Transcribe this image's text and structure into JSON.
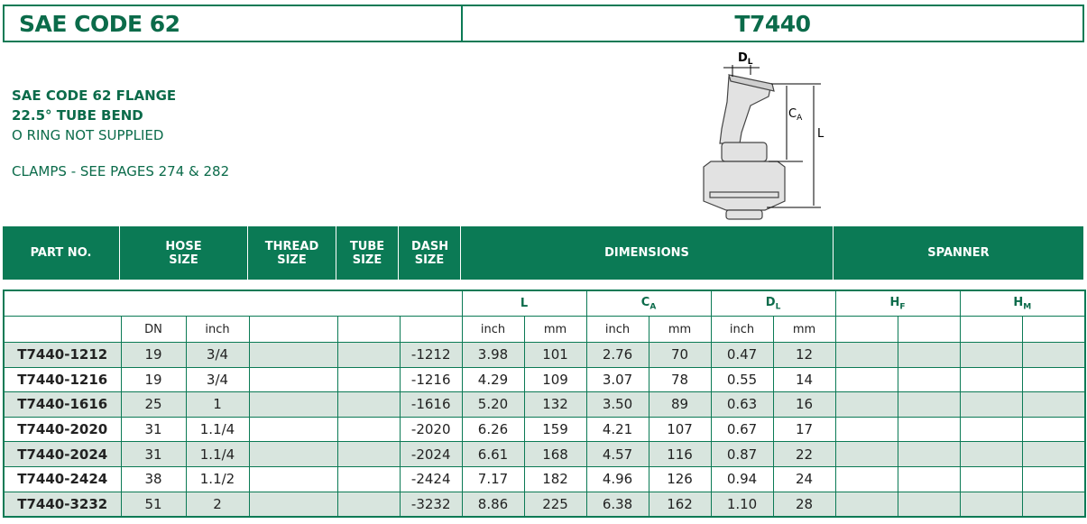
{
  "header": {
    "left": "SAE CODE 62",
    "right": "T7440"
  },
  "description": {
    "lines": [
      "SAE CODE 62 FLANGE",
      "22.5° TUBE BEND",
      "O RING NOT SUPPLIED"
    ],
    "note": "CLAMPS - SEE PAGES 274 & 282"
  },
  "diagram": {
    "dl": {
      "main": "D",
      "sub": "L"
    },
    "ca": {
      "main": "C",
      "sub": "A"
    },
    "l": "L"
  },
  "columns": [
    "PART NO.",
    "HOSE SIZE",
    "THREAD SIZE",
    "TUBE SIZE",
    "DASH SIZE",
    "DIMENSIONS",
    "SPANNER"
  ],
  "groups": [
    {
      "main": "L"
    },
    {
      "main": "C",
      "sub": "A"
    },
    {
      "main": "D",
      "sub": "L"
    },
    {
      "main": "H",
      "sub": "F"
    },
    {
      "main": "H",
      "sub": "M"
    }
  ],
  "units": {
    "dn": "DN",
    "hose_inch": "inch",
    "pairs": [
      [
        "inch",
        "mm"
      ],
      [
        "inch",
        "mm"
      ],
      [
        "inch",
        "mm"
      ]
    ]
  },
  "rows": [
    [
      "T7440-1212",
      "19",
      "3/4",
      "-1212",
      "3.98",
      "101",
      "2.76",
      "70",
      "0.47",
      "12"
    ],
    [
      "T7440-1216",
      "19",
      "3/4",
      "-1216",
      "4.29",
      "109",
      "3.07",
      "78",
      "0.55",
      "14"
    ],
    [
      "T7440-1616",
      "25",
      "1",
      "-1616",
      "5.20",
      "132",
      "3.50",
      "89",
      "0.63",
      "16"
    ],
    [
      "T7440-2020",
      "31",
      "1.1/4",
      "-2020",
      "6.26",
      "159",
      "4.21",
      "107",
      "0.67",
      "17"
    ],
    [
      "T7440-2024",
      "31",
      "1.1/4",
      "-2024",
      "6.61",
      "168",
      "4.57",
      "116",
      "0.87",
      "22"
    ],
    [
      "T7440-2424",
      "38",
      "1.1/2",
      "-2424",
      "7.17",
      "182",
      "4.96",
      "126",
      "0.94",
      "24"
    ],
    [
      "T7440-3232",
      "51",
      "2",
      "-3232",
      "8.86",
      "225",
      "6.38",
      "162",
      "1.10",
      "28"
    ]
  ]
}
